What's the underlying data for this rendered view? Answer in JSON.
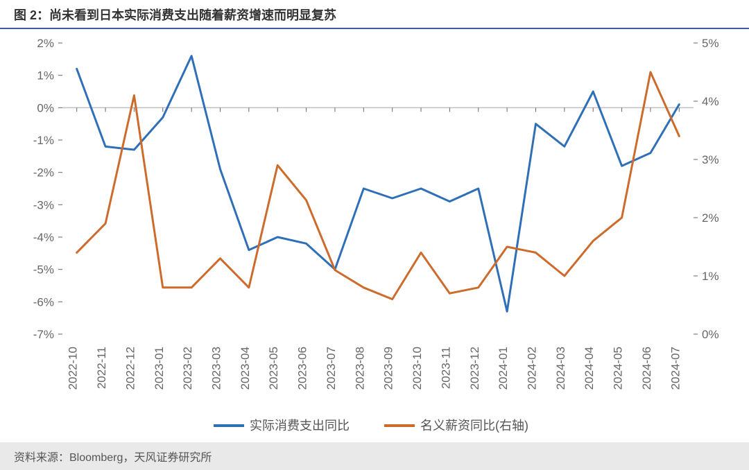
{
  "title": "图 2：尚未看到日本实际消费支出随着薪资增速而明显复苏",
  "source": "资料来源：Bloomberg，天风证券研究所",
  "chart": {
    "type": "line",
    "background_color": "#ffffff",
    "grid_color": "#bfbfbf",
    "axis_color": "#666666",
    "tick_color": "#666666",
    "label_color": "#666666",
    "label_fontsize": 17,
    "legend_fontsize": 18,
    "line_width": 3,
    "categories": [
      "2022-10",
      "2022-11",
      "2022-12",
      "2023-01",
      "2023-02",
      "2023-03",
      "2023-04",
      "2023-05",
      "2023-06",
      "2023-07",
      "2023-08",
      "2023-09",
      "2023-10",
      "2023-11",
      "2023-12",
      "2024-01",
      "2024-02",
      "2024-03",
      "2024-04",
      "2024-05",
      "2024-06",
      "2024-07"
    ],
    "left_axis": {
      "min": -7,
      "max": 2,
      "step": 1,
      "suffix": "%"
    },
    "right_axis": {
      "min": 0,
      "max": 5,
      "step": 1,
      "suffix": "%"
    },
    "series": [
      {
        "name": "实际消费支出同比",
        "axis": "left",
        "color": "#2e6fb8",
        "values": [
          1.2,
          -1.2,
          -1.3,
          -0.3,
          1.6,
          -1.9,
          -4.4,
          -4.0,
          -4.2,
          -5.0,
          -2.5,
          -2.8,
          -2.5,
          -2.9,
          -2.5,
          -6.3,
          -0.5,
          -1.2,
          0.5,
          -1.8,
          -1.4,
          0.1
        ]
      },
      {
        "name": "名义薪资同比(右轴)",
        "axis": "right",
        "color": "#cc6b2c",
        "values": [
          1.4,
          1.9,
          4.1,
          0.8,
          0.8,
          1.3,
          0.8,
          2.9,
          2.3,
          1.1,
          0.8,
          0.6,
          1.4,
          0.7,
          0.8,
          1.5,
          1.4,
          1.0,
          1.6,
          2.0,
          4.5,
          3.4
        ]
      }
    ],
    "legend_position": "bottom"
  }
}
